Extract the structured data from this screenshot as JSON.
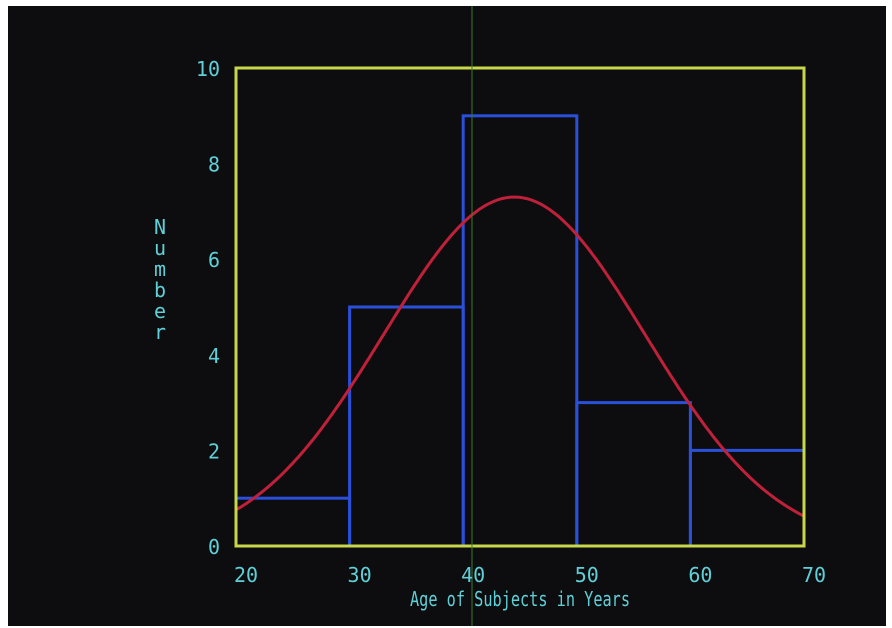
{
  "chart_data": {
    "type": "bar",
    "xlabel": "Age of Subjects in Years",
    "ylabel": "Number",
    "xlim": [
      20,
      70
    ],
    "ylim": [
      0,
      10
    ],
    "x_ticks": [
      "20",
      "30",
      "40",
      "50",
      "60",
      "70"
    ],
    "y_ticks": [
      "0",
      "2",
      "4",
      "6",
      "8",
      "10"
    ],
    "bins": [
      {
        "x0": 20,
        "x1": 30,
        "value": 1
      },
      {
        "x0": 30,
        "x1": 40,
        "value": 5
      },
      {
        "x0": 40,
        "x1": 50,
        "value": 9
      },
      {
        "x0": 50,
        "x1": 60,
        "value": 3
      },
      {
        "x0": 60,
        "x1": 70,
        "value": 2
      }
    ],
    "curve": {
      "type": "normal",
      "mean": 44.5,
      "sd": 11.5,
      "peak": 7.3,
      "x_range": [
        20,
        70
      ]
    },
    "grid": false,
    "colors": {
      "frame": "#c8d84a",
      "histogram": "#2a4fd8",
      "curve": "#c0203a",
      "text": "#5fd0d8",
      "background": "#0d0d0f"
    }
  }
}
